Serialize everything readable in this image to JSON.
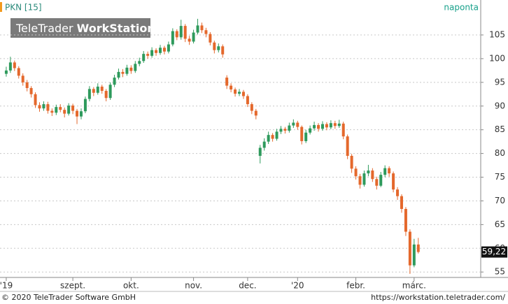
{
  "chart_data": {
    "type": "candlestick",
    "title": "PKN [15]",
    "interval": "naponta",
    "watermark": [
      "TeleTrader",
      "WorkStation"
    ],
    "xlim": [
      -1.5,
      114
    ],
    "ylim": [
      54,
      112
    ],
    "yticks": [
      55,
      60,
      65,
      70,
      75,
      80,
      85,
      90,
      95,
      100,
      105
    ],
    "xticks": [
      {
        "value": 0,
        "label": "'19"
      },
      {
        "value": 16,
        "label": "szept."
      },
      {
        "value": 30,
        "label": "okt."
      },
      {
        "value": 45,
        "label": "nov."
      },
      {
        "value": 58,
        "label": "dec."
      },
      {
        "value": 70,
        "label": "'20"
      },
      {
        "value": 84,
        "label": "febr."
      },
      {
        "value": 98,
        "label": "márc."
      }
    ],
    "grid": true,
    "up_color": "#2e9a5c",
    "down_color": "#e4682c",
    "open": [
      96.8,
      97.5,
      99.2,
      98.0,
      96.4,
      95.0,
      93.8,
      92.5,
      90.2,
      89.5,
      90.4,
      89.0,
      88.6,
      89.8,
      89.2,
      88.4,
      90.1,
      89.0,
      87.8,
      88.9,
      91.5,
      93.6,
      92.8,
      94.1,
      93.2,
      91.7,
      94.5,
      96.0,
      97.2,
      96.8,
      98.1,
      97.4,
      98.9,
      99.5,
      101.0,
      100.6,
      101.8,
      101.2,
      102.3,
      101.5,
      103.0,
      105.8,
      104.5,
      106.9,
      104.2,
      103.6,
      105.5,
      107.0,
      106.0,
      105.2,
      103.4,
      101.8,
      102.6,
      96.0,
      94.3,
      93.5,
      92.6,
      93.0,
      92.1,
      90.4,
      89.0,
      79.5,
      81.2,
      82.5,
      83.9,
      83.1,
      84.6,
      85.2,
      84.8,
      85.9,
      86.5,
      85.6,
      82.6,
      84.4,
      85.3,
      86.0,
      85.2,
      86.2,
      85.5,
      86.4,
      85.8,
      86.3,
      83.6,
      79.5,
      76.8,
      75.2,
      73.4,
      75.8,
      76.4,
      74.6,
      73.2,
      75.5,
      76.9,
      75.8,
      72.4,
      71.0,
      68.3,
      63.5,
      56.4,
      60.8
    ],
    "high": [
      98.3,
      100.4,
      99.6,
      98.4,
      96.9,
      95.5,
      94.2,
      92.9,
      90.8,
      91.0,
      90.9,
      89.5,
      90.3,
      90.4,
      89.7,
      90.6,
      90.5,
      89.4,
      89.5,
      92.0,
      94.2,
      94.0,
      94.8,
      94.5,
      93.6,
      95.0,
      96.6,
      97.9,
      97.8,
      98.7,
      98.6,
      99.5,
      100.2,
      101.6,
      101.5,
      102.4,
      102.2,
      102.9,
      102.7,
      103.6,
      106.4,
      106.2,
      108.2,
      107.3,
      104.8,
      106.1,
      108.4,
      107.6,
      106.5,
      105.6,
      103.8,
      103.2,
      103.0,
      96.5,
      94.8,
      93.9,
      93.6,
      93.4,
      92.5,
      90.8,
      89.4,
      81.8,
      83.2,
      84.6,
      84.3,
      85.2,
      85.8,
      85.6,
      86.5,
      87.2,
      86.9,
      85.9,
      85.0,
      85.9,
      86.7,
      86.4,
      86.8,
      86.6,
      87.0,
      86.9,
      87.1,
      86.7,
      84.0,
      79.9,
      77.3,
      75.7,
      76.4,
      77.6,
      76.9,
      75.1,
      76.1,
      77.5,
      77.3,
      76.2,
      72.9,
      71.4,
      68.7,
      64.0,
      62.0,
      62.2
    ],
    "low": [
      96.2,
      97.0,
      97.4,
      95.8,
      94.3,
      93.1,
      91.8,
      89.6,
      88.8,
      89.0,
      88.4,
      87.9,
      88.1,
      88.7,
      87.6,
      88.0,
      88.3,
      86.2,
      87.2,
      88.5,
      91.0,
      92.1,
      92.4,
      92.6,
      91.0,
      91.3,
      94.0,
      95.6,
      96.1,
      96.4,
      96.8,
      97.0,
      98.4,
      99.1,
      100.0,
      100.2,
      100.6,
      100.8,
      100.9,
      101.1,
      102.6,
      103.9,
      104.0,
      103.5,
      102.9,
      103.2,
      105.1,
      105.4,
      104.5,
      102.8,
      101.1,
      101.3,
      100.2,
      93.6,
      92.9,
      92.0,
      92.1,
      91.5,
      89.8,
      88.3,
      87.2,
      77.9,
      80.6,
      82.0,
      82.5,
      82.7,
      84.1,
      84.2,
      84.4,
      85.4,
      85.0,
      81.9,
      82.2,
      84.0,
      84.8,
      84.6,
      84.8,
      84.9,
      85.1,
      85.2,
      85.4,
      83.0,
      78.8,
      75.9,
      74.5,
      72.6,
      73.0,
      75.2,
      74.0,
      72.4,
      72.9,
      75.0,
      75.1,
      71.8,
      70.2,
      67.5,
      62.6,
      54.6,
      56.0,
      58.9
    ],
    "close": [
      97.5,
      99.2,
      98.0,
      96.4,
      95.0,
      93.8,
      92.5,
      90.2,
      89.5,
      90.4,
      89.0,
      88.6,
      89.8,
      89.2,
      88.4,
      90.1,
      89.0,
      87.8,
      88.9,
      91.5,
      93.6,
      92.8,
      94.1,
      93.2,
      91.7,
      94.5,
      96.0,
      97.2,
      96.8,
      98.1,
      97.4,
      98.9,
      99.5,
      101.0,
      100.6,
      101.8,
      101.2,
      102.3,
      101.5,
      103.0,
      105.8,
      104.5,
      106.9,
      104.2,
      103.6,
      105.5,
      107.0,
      106.0,
      105.2,
      103.4,
      101.8,
      102.6,
      100.9,
      94.3,
      93.5,
      92.6,
      93.0,
      92.1,
      90.4,
      89.0,
      88.0,
      81.2,
      82.5,
      83.9,
      83.1,
      84.6,
      85.2,
      84.8,
      85.9,
      86.5,
      85.6,
      82.6,
      84.4,
      85.3,
      86.0,
      85.2,
      86.2,
      85.5,
      86.4,
      85.8,
      86.3,
      83.6,
      79.5,
      76.8,
      75.2,
      73.4,
      75.8,
      76.4,
      74.6,
      73.2,
      75.5,
      76.9,
      75.8,
      72.4,
      71.0,
      68.3,
      63.5,
      56.4,
      60.8,
      59.22
    ],
    "last_label": {
      "value": 59.22,
      "label": "59,22"
    }
  },
  "footer": {
    "copyright": "© 2020 TeleTrader Software GmbH",
    "url": "https://workstation.teletrader.com/"
  }
}
